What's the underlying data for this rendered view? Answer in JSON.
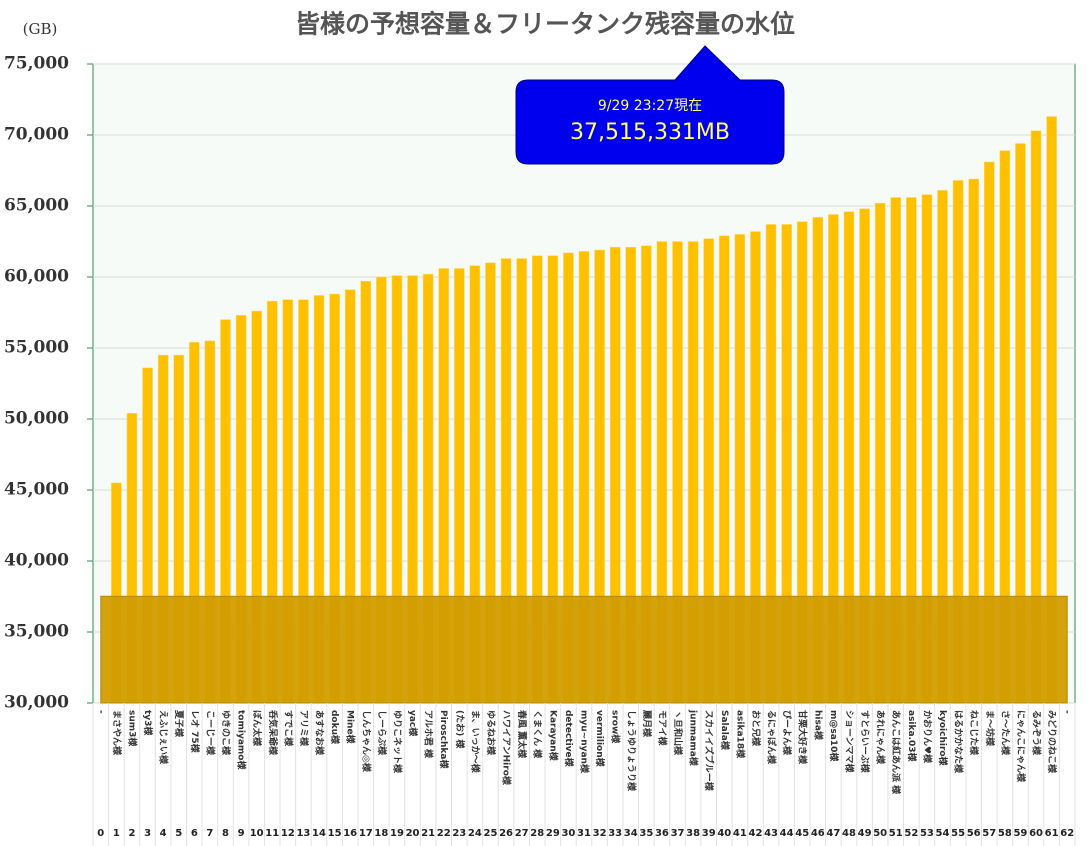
{
  "chart_data": {
    "type": "bar",
    "title": "皆様の予想容量＆フリータンク残容量の水位",
    "y_unit": "(GB)",
    "categories": [
      "0",
      "1",
      "2",
      "3",
      "4",
      "5",
      "6",
      "7",
      "8",
      "9",
      "10",
      "11",
      "12",
      "13",
      "14",
      "15",
      "16",
      "17",
      "18",
      "19",
      "20",
      "21",
      "22",
      "23",
      "24",
      "25",
      "26",
      "27",
      "28",
      "29",
      "30",
      "31",
      "32",
      "33",
      "34",
      "35",
      "36",
      "37",
      "38",
      "39",
      "40",
      "41",
      "42",
      "43",
      "44",
      "45",
      "46",
      "47",
      "48",
      "49",
      "50",
      "51",
      "52",
      "53",
      "54",
      "55",
      "56",
      "57",
      "58",
      "59",
      "60",
      "61",
      "62"
    ],
    "names": [
      "-",
      "まさやん様",
      "sum3様",
      "ty3様",
      "えふじぇい様",
      "夏子様",
      "レオ 75様",
      "こーじー様",
      "ゆきのこ様",
      "tomiyamo様",
      "ぽん太様",
      "呑気呆爺様",
      "すでこ様",
      "アリミ様",
      "あすなお様",
      "doku様",
      "Mine様",
      "しんちゃん◎様",
      "しーらぷ様",
      "ゆりこネット様",
      "yac様",
      "アルホ君 様",
      "Piroschka様",
      "(たお) 様",
      "ま、いっか～様",
      "ゆるねお様",
      "ハワイアンHiro様",
      "春風 薫太様",
      "くまくん 様",
      "Karayan様",
      "detective様",
      "myu~nyan様",
      "vermilion様",
      "srow様",
      "しょうゆりょうり様",
      "麗月様",
      "モアイ様",
      "ヽ旦和山様",
      "junmama様",
      "スカイイズブルー様",
      "Salala様",
      "asika18様",
      "おと兄様",
      "るにゃぽん様",
      "ぴーよん様",
      "甘栗大好き様",
      "hisa様",
      "m@sa10様",
      "ショーンママ様",
      "すとらいーぶ様",
      "あれにゃん様",
      "あんこは紅あん派 様",
      "asika.03様",
      "かおりん♥様",
      "kyoichiro様",
      "はるかかなた様",
      "ねこじた様",
      "ま～坊様",
      "さ～たん様",
      "にゃんこにゃん様",
      "るみぞう様",
      "みどりのねこ様",
      "-"
    ],
    "values": [
      null,
      45500,
      50400,
      53600,
      54500,
      54500,
      55400,
      55500,
      57000,
      57300,
      57600,
      58300,
      58400,
      58400,
      58700,
      58800,
      59100,
      59700,
      60000,
      60100,
      60100,
      60200,
      60600,
      60600,
      60800,
      61000,
      61300,
      61300,
      61500,
      61500,
      61700,
      61800,
      61900,
      62100,
      62100,
      62200,
      62500,
      62500,
      62500,
      62700,
      62900,
      63000,
      63200,
      63700,
      63700,
      63900,
      64200,
      64400,
      64600,
      64800,
      65200,
      65600,
      65600,
      65800,
      66100,
      66800,
      66900,
      68100,
      68900,
      69400,
      70300,
      71300,
      null
    ],
    "color": "#ffc000",
    "water_level": 37515.331,
    "water_color": "#d19d00",
    "annotation_time": "9/29 23:27現在",
    "annotation_value": "37,515,331MB",
    "ylim": [
      30000,
      75000
    ],
    "yticks": [
      {
        "value": 30000,
        "label": "30,000"
      },
      {
        "value": 35000,
        "label": "35,000"
      },
      {
        "value": 40000,
        "label": "40,000"
      },
      {
        "value": 45000,
        "label": "45,000"
      },
      {
        "value": 50000,
        "label": "50,000"
      },
      {
        "value": 55000,
        "label": "55,000"
      },
      {
        "value": 60000,
        "label": "60,000"
      },
      {
        "value": 65000,
        "label": "65,000"
      },
      {
        "value": 70000,
        "label": "70,000"
      },
      {
        "value": 75000,
        "label": "75,000"
      }
    ],
    "grid": true
  }
}
